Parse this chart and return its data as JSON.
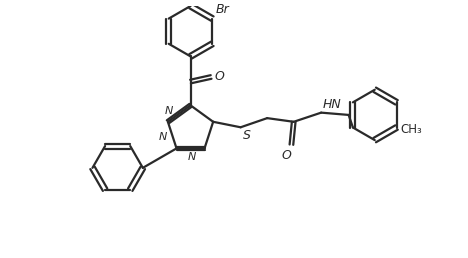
{
  "background_color": "#ffffff",
  "line_color": "#2a2a2a",
  "line_width": 1.6,
  "dbo": 0.055,
  "figsize": [
    4.68,
    2.58
  ],
  "dpi": 100,
  "xlim": [
    0,
    9.5
  ],
  "ylim": [
    0,
    5.5
  ]
}
